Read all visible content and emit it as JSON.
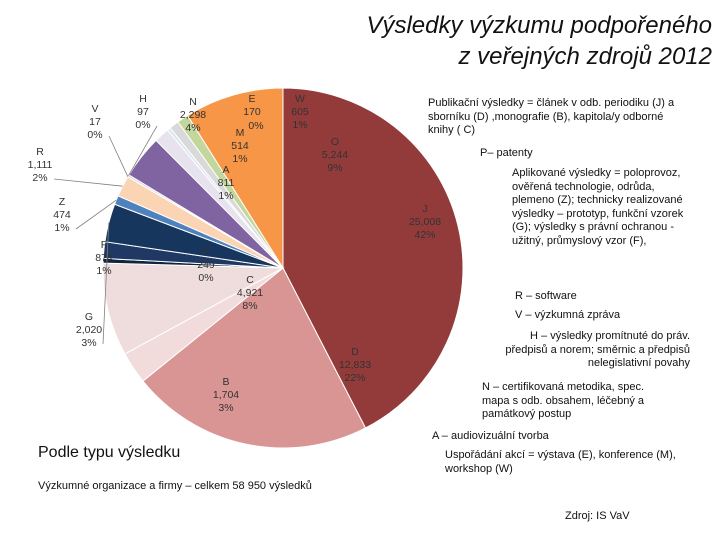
{
  "title_line1": "Výsledky výzkumu podpořeného",
  "title_line2": "z veřejných zdrojů 2012",
  "subtitle": "Podle typu výsledku",
  "footnote": "Výzkumné organizace a firmy – celkem  58 950 výsledků",
  "source": "Zdroj: IS VaV",
  "legend": [
    {
      "text": "Publikační výsledky = článek v odb. periodiku (J) a sborníku (D) ,monografie (B), kapitola/y odborné knihy ( C)"
    },
    {
      "text": "P– patenty"
    },
    {
      "text": "Aplikované výsledky = poloprovoz, ověřená technologie, odrůda, plemeno (Z); technicky realizované výsledky – prototyp, funkční vzorek (G); výsledky s právní ochranou - užitný, průmyslový vzor (F),"
    },
    {
      "text": "R – software"
    },
    {
      "text": "V – výzkumná zpráva"
    },
    {
      "text": "H – výsledky promítnuté do práv. předpisů a norem; směrnic a předpisů nelegislativní povahy"
    },
    {
      "text": "N – certifikovaná metodika, spec. mapa s odb. obsahem, léčebný a památkový postup"
    },
    {
      "text": "A – audiovizuální tvorba"
    },
    {
      "text": "Uspořádání akcí = výstava (E), konference (M),        workshop (W)"
    }
  ],
  "chart_data": {
    "type": "pie",
    "slices": [
      {
        "code": "J",
        "value": 25008,
        "percent": "42%",
        "value_label": "25,008",
        "color": "#933b3b"
      },
      {
        "code": "D",
        "value": 12833,
        "percent": "22%",
        "value_label": "12,833",
        "color": "#d99594"
      },
      {
        "code": "B",
        "value": 1704,
        "percent": "3%",
        "value_label": "1,704",
        "color": "#f2dcdb"
      },
      {
        "code": "C",
        "value": 4921,
        "percent": "8%",
        "value_label": "4,921",
        "color": "#efdddd"
      },
      {
        "code": "P",
        "value": 249,
        "percent": "0%",
        "value_label": "249",
        "color": "#0f243e"
      },
      {
        "code": "F",
        "value": 874,
        "percent": "1%",
        "value_label": "874",
        "color": "#1f3864"
      },
      {
        "code": "G",
        "value": 2020,
        "percent": "3%",
        "value_label": "2,020",
        "color": "#17365d"
      },
      {
        "code": "Z",
        "value": 474,
        "percent": "1%",
        "value_label": "474",
        "color": "#4f81bd"
      },
      {
        "code": "R",
        "value": 1111,
        "percent": "2%",
        "value_label": "1,111",
        "color": "#fbd4b4"
      },
      {
        "code": "V",
        "value": 17,
        "percent": "0%",
        "value_label": "17",
        "color": "#e5e0ec"
      },
      {
        "code": "H",
        "value": 97,
        "percent": "0%",
        "value_label": "97",
        "color": "#ccc0da"
      },
      {
        "code": "N",
        "value": 2298,
        "percent": "4%",
        "value_label": "2,298",
        "color": "#8064a2"
      },
      {
        "code": "A",
        "value": 811,
        "percent": "1%",
        "value_label": "811",
        "color": "#e7e3ee"
      },
      {
        "code": "E",
        "value": 170,
        "percent": "",
        "value_label": "170",
        "color": "#dbe5f1"
      },
      {
        "code": "M",
        "value": 514,
        "percent": "1%",
        "value_label": "514",
        "color": "#d9d9d9"
      },
      {
        "code": "W",
        "value": 605,
        "percent": "1%",
        "value_label": "605",
        "color": "#c3d69b"
      },
      {
        "code": "O",
        "value": 5244,
        "percent": "9%",
        "value_label": "5,244",
        "color": "#f79646"
      }
    ],
    "extra_labels": [
      {
        "text": "0%"
      }
    ]
  }
}
